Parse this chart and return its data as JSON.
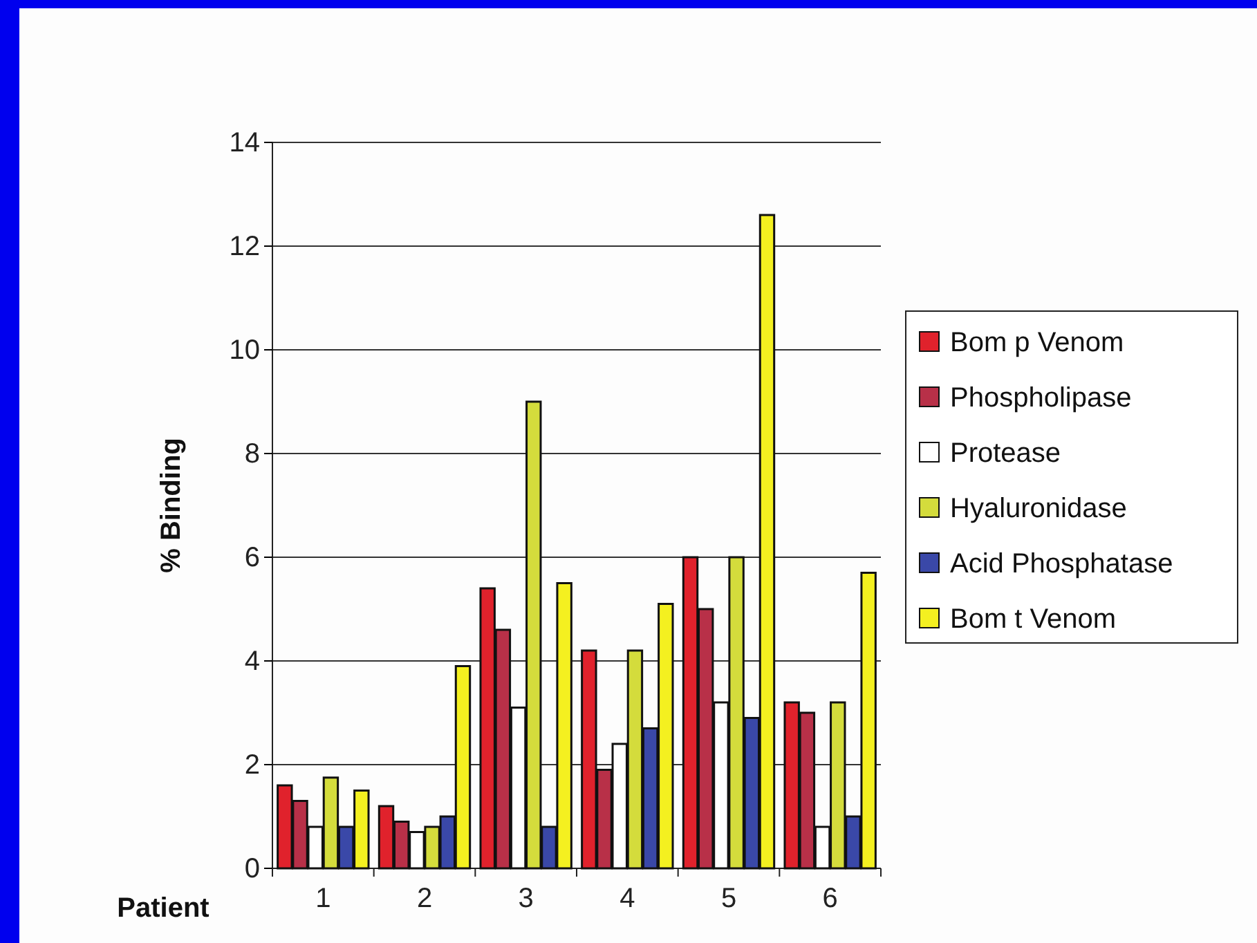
{
  "chart_data": {
    "type": "bar",
    "xlabel": "Patient",
    "ylabel": "% Binding",
    "categories": [
      "1",
      "2",
      "3",
      "4",
      "5",
      "6"
    ],
    "series": [
      {
        "name": "Bom p Venom",
        "color": "#e0222c",
        "values": [
          1.6,
          1.2,
          5.4,
          4.2,
          6.0,
          3.2
        ]
      },
      {
        "name": "Phospholipase",
        "color": "#b83048",
        "values": [
          1.3,
          0.9,
          4.6,
          1.9,
          5.0,
          3.0
        ]
      },
      {
        "name": "Protease",
        "color": "#ffffff",
        "values": [
          0.8,
          0.7,
          3.1,
          2.4,
          3.2,
          0.8
        ]
      },
      {
        "name": "Hyaluronidase",
        "color": "#d4dc3c",
        "values": [
          1.75,
          0.8,
          9.0,
          4.2,
          6.0,
          3.2
        ]
      },
      {
        "name": "Acid Phosphatase",
        "color": "#3a48a8",
        "values": [
          0.8,
          1.0,
          0.8,
          2.7,
          2.9,
          1.0
        ]
      },
      {
        "name": "Bom t Venom",
        "color": "#f4f020",
        "values": [
          1.5,
          3.9,
          5.5,
          5.1,
          12.6,
          5.7
        ]
      }
    ],
    "ylim": [
      0,
      14
    ],
    "yticks": [
      0,
      2,
      4,
      6,
      8,
      10,
      12,
      14
    ],
    "grid": "y",
    "legend": "right"
  }
}
